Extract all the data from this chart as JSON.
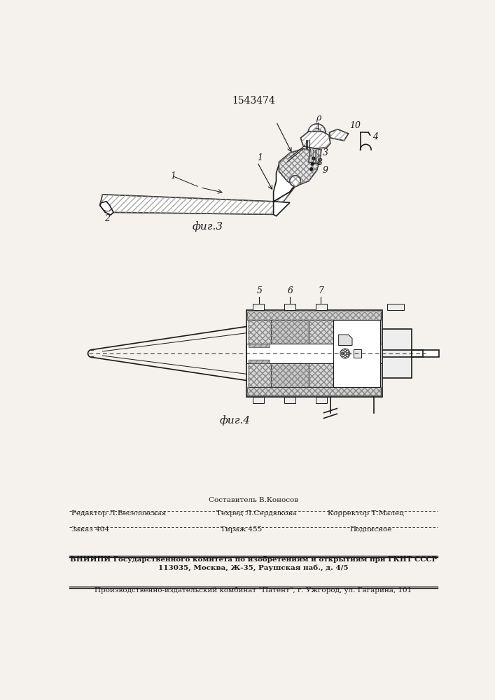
{
  "patent_number": "1543474",
  "bg_color": "#f5f2ee",
  "line_color": "#1a1a1a",
  "fig3_label": "фиг.3",
  "fig4_label": "фиг.4",
  "footer_sestavitel": "Составитель В.Коносов",
  "footer_redaktor": "Редактор Л.Веселовская",
  "footer_tehred": "Техред Л.Сердюкова",
  "footer_korrektor": "Корректор Т.Малец",
  "footer_zakaz": "Заказ 404",
  "footer_tirazh": "Тираж 455",
  "footer_podpisnoe": "Подписное",
  "footer_vniipи": "ВНИИПИ Государственного комитета по изобретениям и открытиям при ГКНТ СССР",
  "footer_address": "113035, Москва, Ж-35, Раушская наб., д. 4/5",
  "footer_patent": "Производственно-издательский комбинат \"Патент\", г. Ужгород, ул. Гагарина, 101"
}
